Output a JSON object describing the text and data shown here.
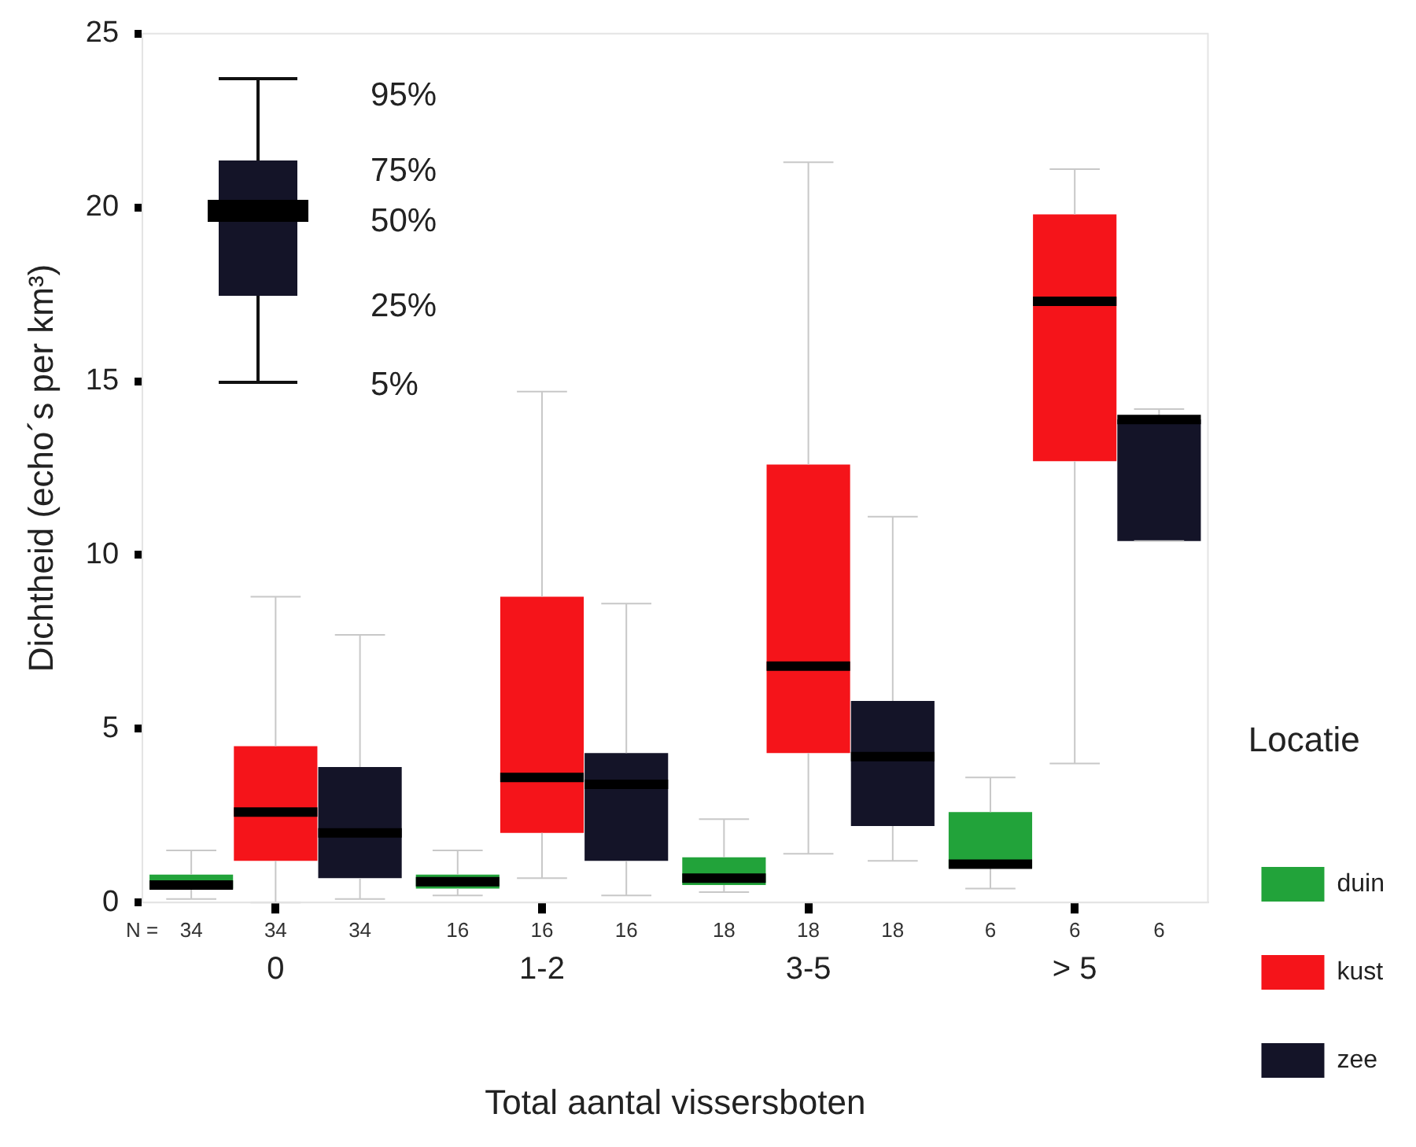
{
  "chart_data": {
    "type": "box",
    "xlabel": "Total aantal vissersboten",
    "ylabel": "Dichtheid (echo´s per km³)",
    "legend_title": "Locatie",
    "legend": "right",
    "categories": [
      "0",
      "1-2",
      "3-5",
      "> 5"
    ],
    "ylim": [
      0,
      25
    ],
    "yticks": [
      0,
      5,
      10,
      15,
      20,
      25
    ],
    "series": [
      {
        "name": "duin",
        "color": "#22a33a",
        "boxes": [
          {
            "low": 0.1,
            "q1": 0.4,
            "median": 0.5,
            "q3": 0.8,
            "high": 1.5
          },
          {
            "low": 0.2,
            "q1": 0.4,
            "median": 0.6,
            "q3": 0.8,
            "high": 1.5
          },
          {
            "low": 0.3,
            "q1": 0.5,
            "median": 0.7,
            "q3": 1.3,
            "high": 2.4
          },
          {
            "low": 0.4,
            "q1": 1,
            "median": 1.1,
            "q3": 2.6,
            "high": 3.6
          }
        ]
      },
      {
        "name": "kust",
        "color": "#f5141a",
        "boxes": [
          {
            "low": 0,
            "q1": 1.2,
            "median": 2.6,
            "q3": 4.5,
            "high": 8.8
          },
          {
            "low": 0.7,
            "q1": 2,
            "median": 3.6,
            "q3": 8.8,
            "high": 14.7
          },
          {
            "low": 1.4,
            "q1": 4.3,
            "median": 6.8,
            "q3": 12.6,
            "high": 21.3
          },
          {
            "low": 4,
            "q1": 12.7,
            "median": 17.3,
            "q3": 19.8,
            "high": 21.1
          }
        ]
      },
      {
        "name": "zee",
        "color": "#141428",
        "boxes": [
          {
            "low": 0.1,
            "q1": 0.7,
            "median": 2,
            "q3": 3.9,
            "high": 7.7
          },
          {
            "low": 0.2,
            "q1": 1.2,
            "median": 3.4,
            "q3": 4.3,
            "high": 8.6
          },
          {
            "low": 1.2,
            "q1": 2.2,
            "median": 4.2,
            "q3": 5.8,
            "high": 11.1
          },
          {
            "low": 10.4,
            "q1": 10.4,
            "median": 13.9,
            "q3": 13.9,
            "high": 14.2
          }
        ]
      }
    ],
    "annotations": [
      "95%",
      "75%",
      "50%",
      "25%",
      "5%",
      "N =",
      "34",
      "34",
      "34",
      "16",
      "16",
      "16",
      "18",
      "18",
      "18",
      "6",
      "6",
      "6"
    ]
  }
}
